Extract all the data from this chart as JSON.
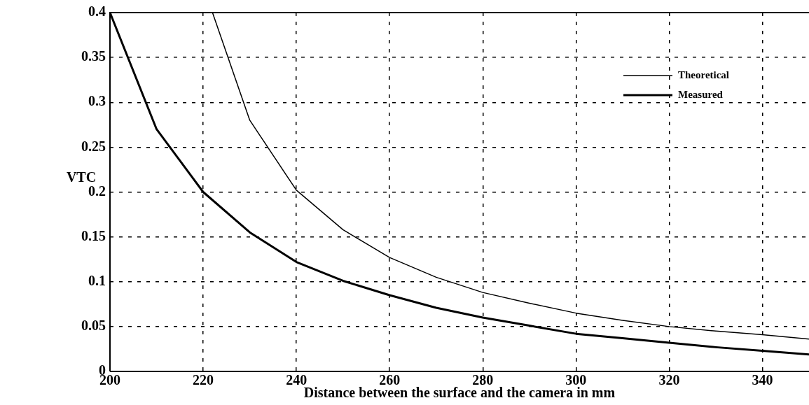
{
  "chart_data": {
    "type": "line",
    "xlabel": "Distance between the surface and the camera in mm",
    "ylabel": "VTC",
    "xlim": [
      200,
      350
    ],
    "xticks": [
      200,
      220,
      240,
      260,
      280,
      300,
      320,
      340
    ],
    "ylim": [
      0,
      0.4
    ],
    "yticks": [
      0,
      0.05,
      0.1,
      0.15,
      0.2,
      0.25,
      0.3,
      0.35,
      0.4
    ],
    "series": [
      {
        "name": "Theoretical",
        "color": "#000000",
        "x": [
          222,
          230,
          240,
          250,
          260,
          270,
          280,
          290,
          300,
          310,
          320,
          330,
          340,
          350
        ],
        "values": [
          0.4,
          0.28,
          0.202,
          0.158,
          0.127,
          0.105,
          0.088,
          0.076,
          0.065,
          0.057,
          0.05,
          0.045,
          0.041,
          0.036
        ]
      },
      {
        "name": "Measured",
        "color": "#000000",
        "x": [
          200,
          210,
          220,
          230,
          240,
          250,
          260,
          270,
          280,
          290,
          300,
          310,
          320,
          330,
          340,
          350
        ],
        "values": [
          0.4,
          0.27,
          0.2,
          0.155,
          0.122,
          0.101,
          0.085,
          0.071,
          0.06,
          0.051,
          0.042,
          0.037,
          0.032,
          0.027,
          0.023,
          0.019
        ]
      }
    ],
    "grid": true,
    "line_style": "solid",
    "marker": "none",
    "legend": "top right"
  }
}
